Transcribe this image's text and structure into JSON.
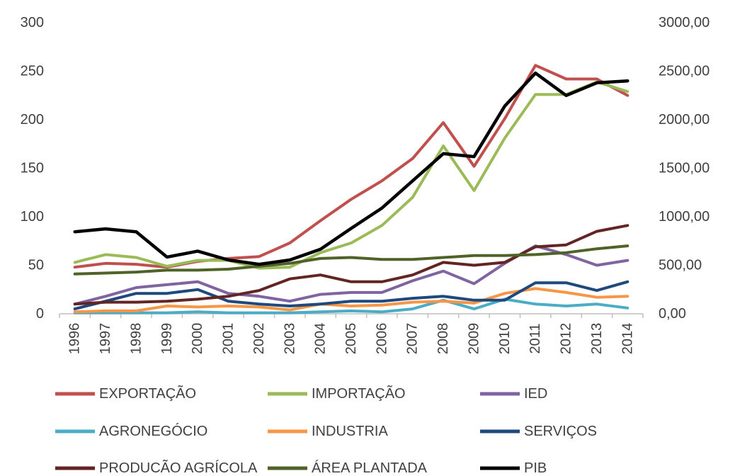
{
  "chart_data": {
    "type": "line",
    "title": "",
    "xlabel": "",
    "ylabel": "",
    "y2label": "",
    "grid": false,
    "legend_position": "bottom",
    "x": [
      "1996",
      "1997",
      "1998",
      "1999",
      "2000",
      "2001",
      "2002",
      "2003",
      "2004",
      "2005",
      "2006",
      "2007",
      "2008",
      "2009",
      "2010",
      "2011",
      "2012",
      "2013",
      "2014"
    ],
    "ylim": [
      0,
      300
    ],
    "y_ticks": [
      "0",
      "50",
      "100",
      "150",
      "200",
      "250",
      "300"
    ],
    "y2lim": [
      0,
      3000
    ],
    "y2_ticks": [
      "0,00",
      "500,00",
      "1000,00",
      "1500,00",
      "2000,00",
      "2500,00",
      "3000,00"
    ],
    "series": [
      {
        "name": "EXPORTAÇÃO",
        "axis": "left",
        "color": "#c0504d",
        "values": [
          48,
          52,
          51,
          48,
          54,
          57,
          59,
          73,
          96,
          118,
          137,
          160,
          197,
          152,
          201,
          256,
          242,
          242,
          225
        ]
      },
      {
        "name": "IMPORTAÇÃO",
        "axis": "left",
        "color": "#9bbb59",
        "values": [
          53,
          61,
          58,
          49,
          55,
          55,
          47,
          48,
          63,
          73,
          91,
          120,
          173,
          127,
          181,
          226,
          226,
          239,
          229
        ]
      },
      {
        "name": "IED",
        "axis": "left",
        "color": "#8064a2",
        "values": [
          10,
          18,
          27,
          30,
          33,
          21,
          18,
          13,
          20,
          22,
          22,
          34,
          44,
          31,
          52,
          70,
          61,
          50,
          55
        ]
      },
      {
        "name": "AGRONEGÓCIO",
        "axis": "left",
        "color": "#4bacc6",
        "values": [
          1,
          1,
          1,
          1,
          2,
          1,
          1,
          1,
          2,
          3,
          2,
          5,
          14,
          5,
          15,
          10,
          8,
          10,
          6
        ]
      },
      {
        "name": "INDUSTRIA",
        "axis": "left",
        "color": "#f79646",
        "values": [
          2,
          3,
          3,
          8,
          7,
          8,
          7,
          4,
          10,
          8,
          9,
          12,
          13,
          11,
          21,
          26,
          22,
          17,
          18
        ]
      },
      {
        "name": "SERVIÇOS",
        "axis": "left",
        "color": "#1f497d",
        "values": [
          5,
          13,
          21,
          21,
          25,
          13,
          10,
          8,
          10,
          13,
          13,
          16,
          18,
          14,
          14,
          32,
          32,
          24,
          33
        ]
      },
      {
        "name": "PRODUCÃO AGRÍCOLA",
        "axis": "left",
        "color": "#632523",
        "values": [
          10,
          12,
          12,
          13,
          15,
          18,
          24,
          36,
          40,
          33,
          33,
          40,
          53,
          50,
          53,
          69,
          71,
          85,
          91
        ]
      },
      {
        "name": "ÁREA PLANTADA",
        "axis": "left",
        "color": "#4f6228",
        "values": [
          41,
          42,
          43,
          45,
          45,
          46,
          49,
          52,
          57,
          58,
          56,
          56,
          58,
          60,
          60,
          61,
          63,
          67,
          70
        ]
      },
      {
        "name": "PIB",
        "axis": "right",
        "color": "#000000",
        "values": [
          845,
          875,
          845,
          585,
          645,
          555,
          510,
          555,
          665,
          880,
          1090,
          1370,
          1650,
          1620,
          2140,
          2480,
          2250,
          2380,
          2400
        ]
      }
    ]
  }
}
